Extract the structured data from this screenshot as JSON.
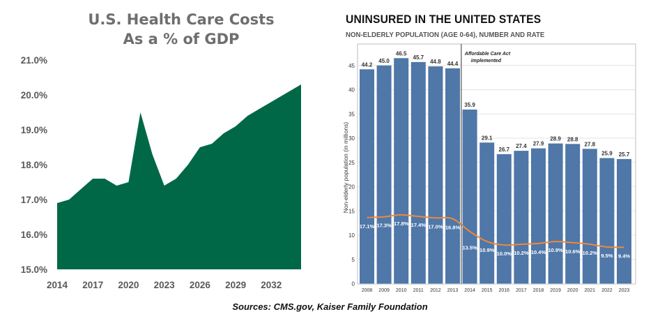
{
  "chart_data": [
    {
      "type": "area",
      "title": [
        "U.S. Health Care Costs",
        "As a % of GDP"
      ],
      "xlabel": "",
      "ylabel": "",
      "x_ticks": [
        "2014",
        "2017",
        "2020",
        "2023",
        "2026",
        "2029",
        "2032"
      ],
      "y_ticks": [
        "15.0%",
        "16.0%",
        "17.0%",
        "18.0%",
        "19.0%",
        "20.0%",
        "21.0%"
      ],
      "xlim": [
        2014,
        2034.5
      ],
      "ylim": [
        15.0,
        21.0
      ],
      "x": [
        2014,
        2015,
        2016,
        2017,
        2018,
        2019,
        2020,
        2021,
        2022,
        2023,
        2024,
        2025,
        2026,
        2027,
        2028,
        2029,
        2030,
        2031,
        2032,
        2033,
        2034,
        2034.5
      ],
      "values": [
        16.9,
        17.0,
        17.3,
        17.6,
        17.6,
        17.4,
        17.5,
        19.5,
        18.3,
        17.4,
        17.6,
        18.0,
        18.5,
        18.6,
        18.9,
        19.1,
        19.4,
        19.6,
        19.8,
        20.0,
        20.2,
        20.3
      ],
      "color": "#006847"
    },
    {
      "type": "bar",
      "title": "UNINSURED IN THE UNITED STATES",
      "subtitle": "NON-ELDERLY POPULATION (AGE 0-64), NUMBER AND RATE",
      "ylabel": "Non-elderly population (in millions)",
      "categories": [
        "2008",
        "2009",
        "2010",
        "2011",
        "2012",
        "2013",
        "2014",
        "2015",
        "2016",
        "2017",
        "2018",
        "2019",
        "2020",
        "2021",
        "2022",
        "2023"
      ],
      "value_labels": [
        "44.2",
        "45.0",
        "46.5",
        "45.7",
        "44.8",
        "44.4",
        "35.9",
        "29.1",
        "26.7",
        "27.4",
        "27.9",
        "28.9",
        "28.8",
        "27.8",
        "25.9",
        "25.7"
      ],
      "values": [
        44.2,
        45.0,
        46.5,
        45.7,
        44.8,
        44.4,
        35.9,
        29.1,
        26.7,
        27.4,
        27.9,
        28.9,
        28.8,
        27.8,
        25.9,
        25.7
      ],
      "rate_labels": [
        "17.1%",
        "17.3%",
        "17.8%",
        "17.4%",
        "17.0%",
        "16.8%",
        "13.5%",
        "10.9%",
        "10.0%",
        "10.2%",
        "10.4%",
        "10.9%",
        "10.6%",
        "10.2%",
        "9.5%",
        "9.4%"
      ],
      "rates": [
        17.1,
        17.3,
        17.8,
        17.4,
        17.0,
        16.8,
        13.5,
        10.9,
        10.0,
        10.2,
        10.4,
        10.9,
        10.6,
        10.2,
        9.5,
        9.4
      ],
      "rate_axis_max": 62,
      "y_ticks": [
        "0",
        "5",
        "10",
        "15",
        "20",
        "25",
        "30",
        "35",
        "40",
        "45"
      ],
      "ylim": [
        0,
        50
      ],
      "annotation": [
        "Affordable Care Act",
        "implemented"
      ],
      "bar_color": "#4f77a8",
      "line_color": "#ed8a3a"
    }
  ],
  "sources": "Sources: CMS.gov,  Kaiser Family Foundation"
}
